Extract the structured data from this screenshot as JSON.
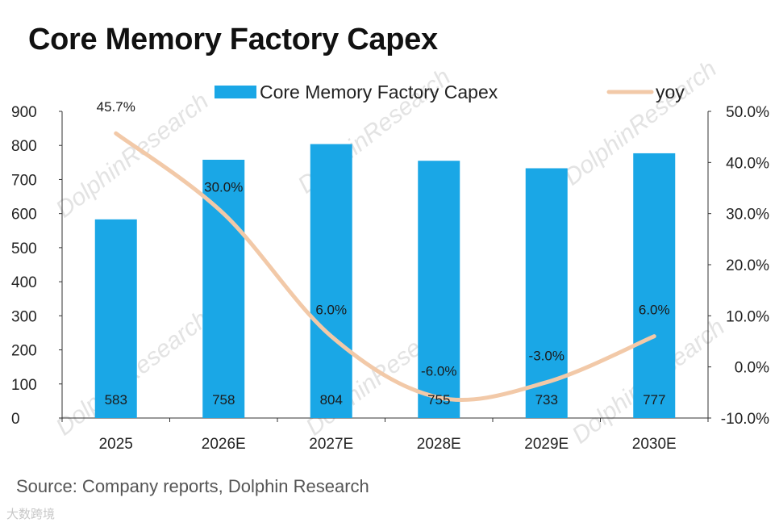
{
  "title": "Core Memory Factory Capex",
  "source": "Source: Company reports, Dolphin Research",
  "footer_logo": "大数跨境",
  "watermark": "DolphinResearch",
  "colors": {
    "bar": "#1aa7e6",
    "line": "#f2c9a8",
    "axis": "#333333"
  },
  "chart_data": {
    "type": "bar",
    "categories": [
      "2025",
      "2026E",
      "2027E",
      "2028E",
      "2029E",
      "2030E"
    ],
    "series": [
      {
        "name": "Core Memory Factory Capex",
        "type": "bar",
        "axis": "left",
        "values": [
          583,
          758,
          804,
          755,
          733,
          777
        ],
        "labels": [
          "583",
          "758",
          "804",
          "755",
          "733",
          "777"
        ]
      },
      {
        "name": "yoy",
        "type": "line",
        "axis": "right",
        "values": [
          45.7,
          30.0,
          6.0,
          -6.0,
          -3.0,
          6.0
        ],
        "labels": [
          "45.7%",
          "30.0%",
          "6.0%",
          "-6.0%",
          "-3.0%",
          "6.0%"
        ]
      }
    ],
    "left_axis": {
      "ylim": [
        0,
        900
      ],
      "ticks": [
        "0",
        "100",
        "200",
        "300",
        "400",
        "500",
        "600",
        "700",
        "800",
        "900"
      ]
    },
    "right_axis": {
      "ylim": [
        -10,
        50
      ],
      "ticks": [
        "-10.0%",
        "0.0%",
        "10.0%",
        "20.0%",
        "30.0%",
        "40.0%",
        "50.0%"
      ]
    },
    "legend_position": "top"
  }
}
